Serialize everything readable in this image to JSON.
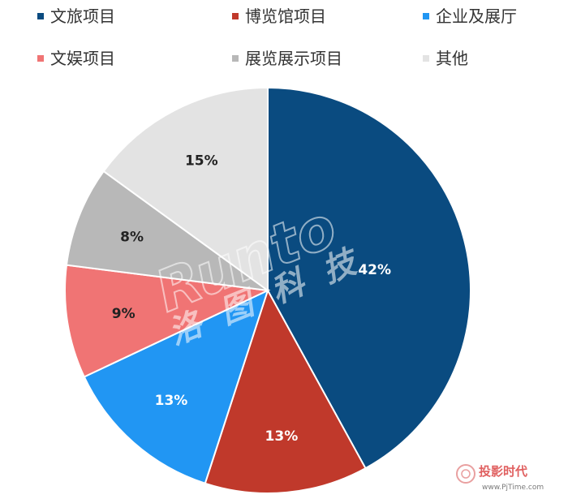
{
  "chart_data": {
    "type": "pie",
    "start_angle_deg": 0,
    "direction": "clockwise",
    "legend_position": "top",
    "slices": [
      {
        "label": "文旅项目",
        "value": 42,
        "display": "42%",
        "color": "#0a4b80",
        "label_color": "#ffffff"
      },
      {
        "label": "博览馆项目",
        "value": 13,
        "display": "13%",
        "color": "#c0392b",
        "label_color": "#ffffff"
      },
      {
        "label": "企业及展厅",
        "value": 13,
        "display": "13%",
        "color": "#2196f3",
        "label_color": "#ffffff"
      },
      {
        "label": "文娱项目",
        "value": 9,
        "display": "9%",
        "color": "#f07474",
        "label_color": "#222222"
      },
      {
        "label": "展览展示项目",
        "value": 8,
        "display": "8%",
        "color": "#b8b8b8",
        "label_color": "#222222"
      },
      {
        "label": "其他",
        "value": 15,
        "display": "15%",
        "color": "#e3e3e3",
        "label_color": "#222222"
      }
    ]
  },
  "watermark": {
    "brand_latin": "Runto",
    "brand_cn": "洛图科技"
  },
  "corner_logo": {
    "name_cn": "投影时代",
    "site": "www.PjTime.com"
  }
}
